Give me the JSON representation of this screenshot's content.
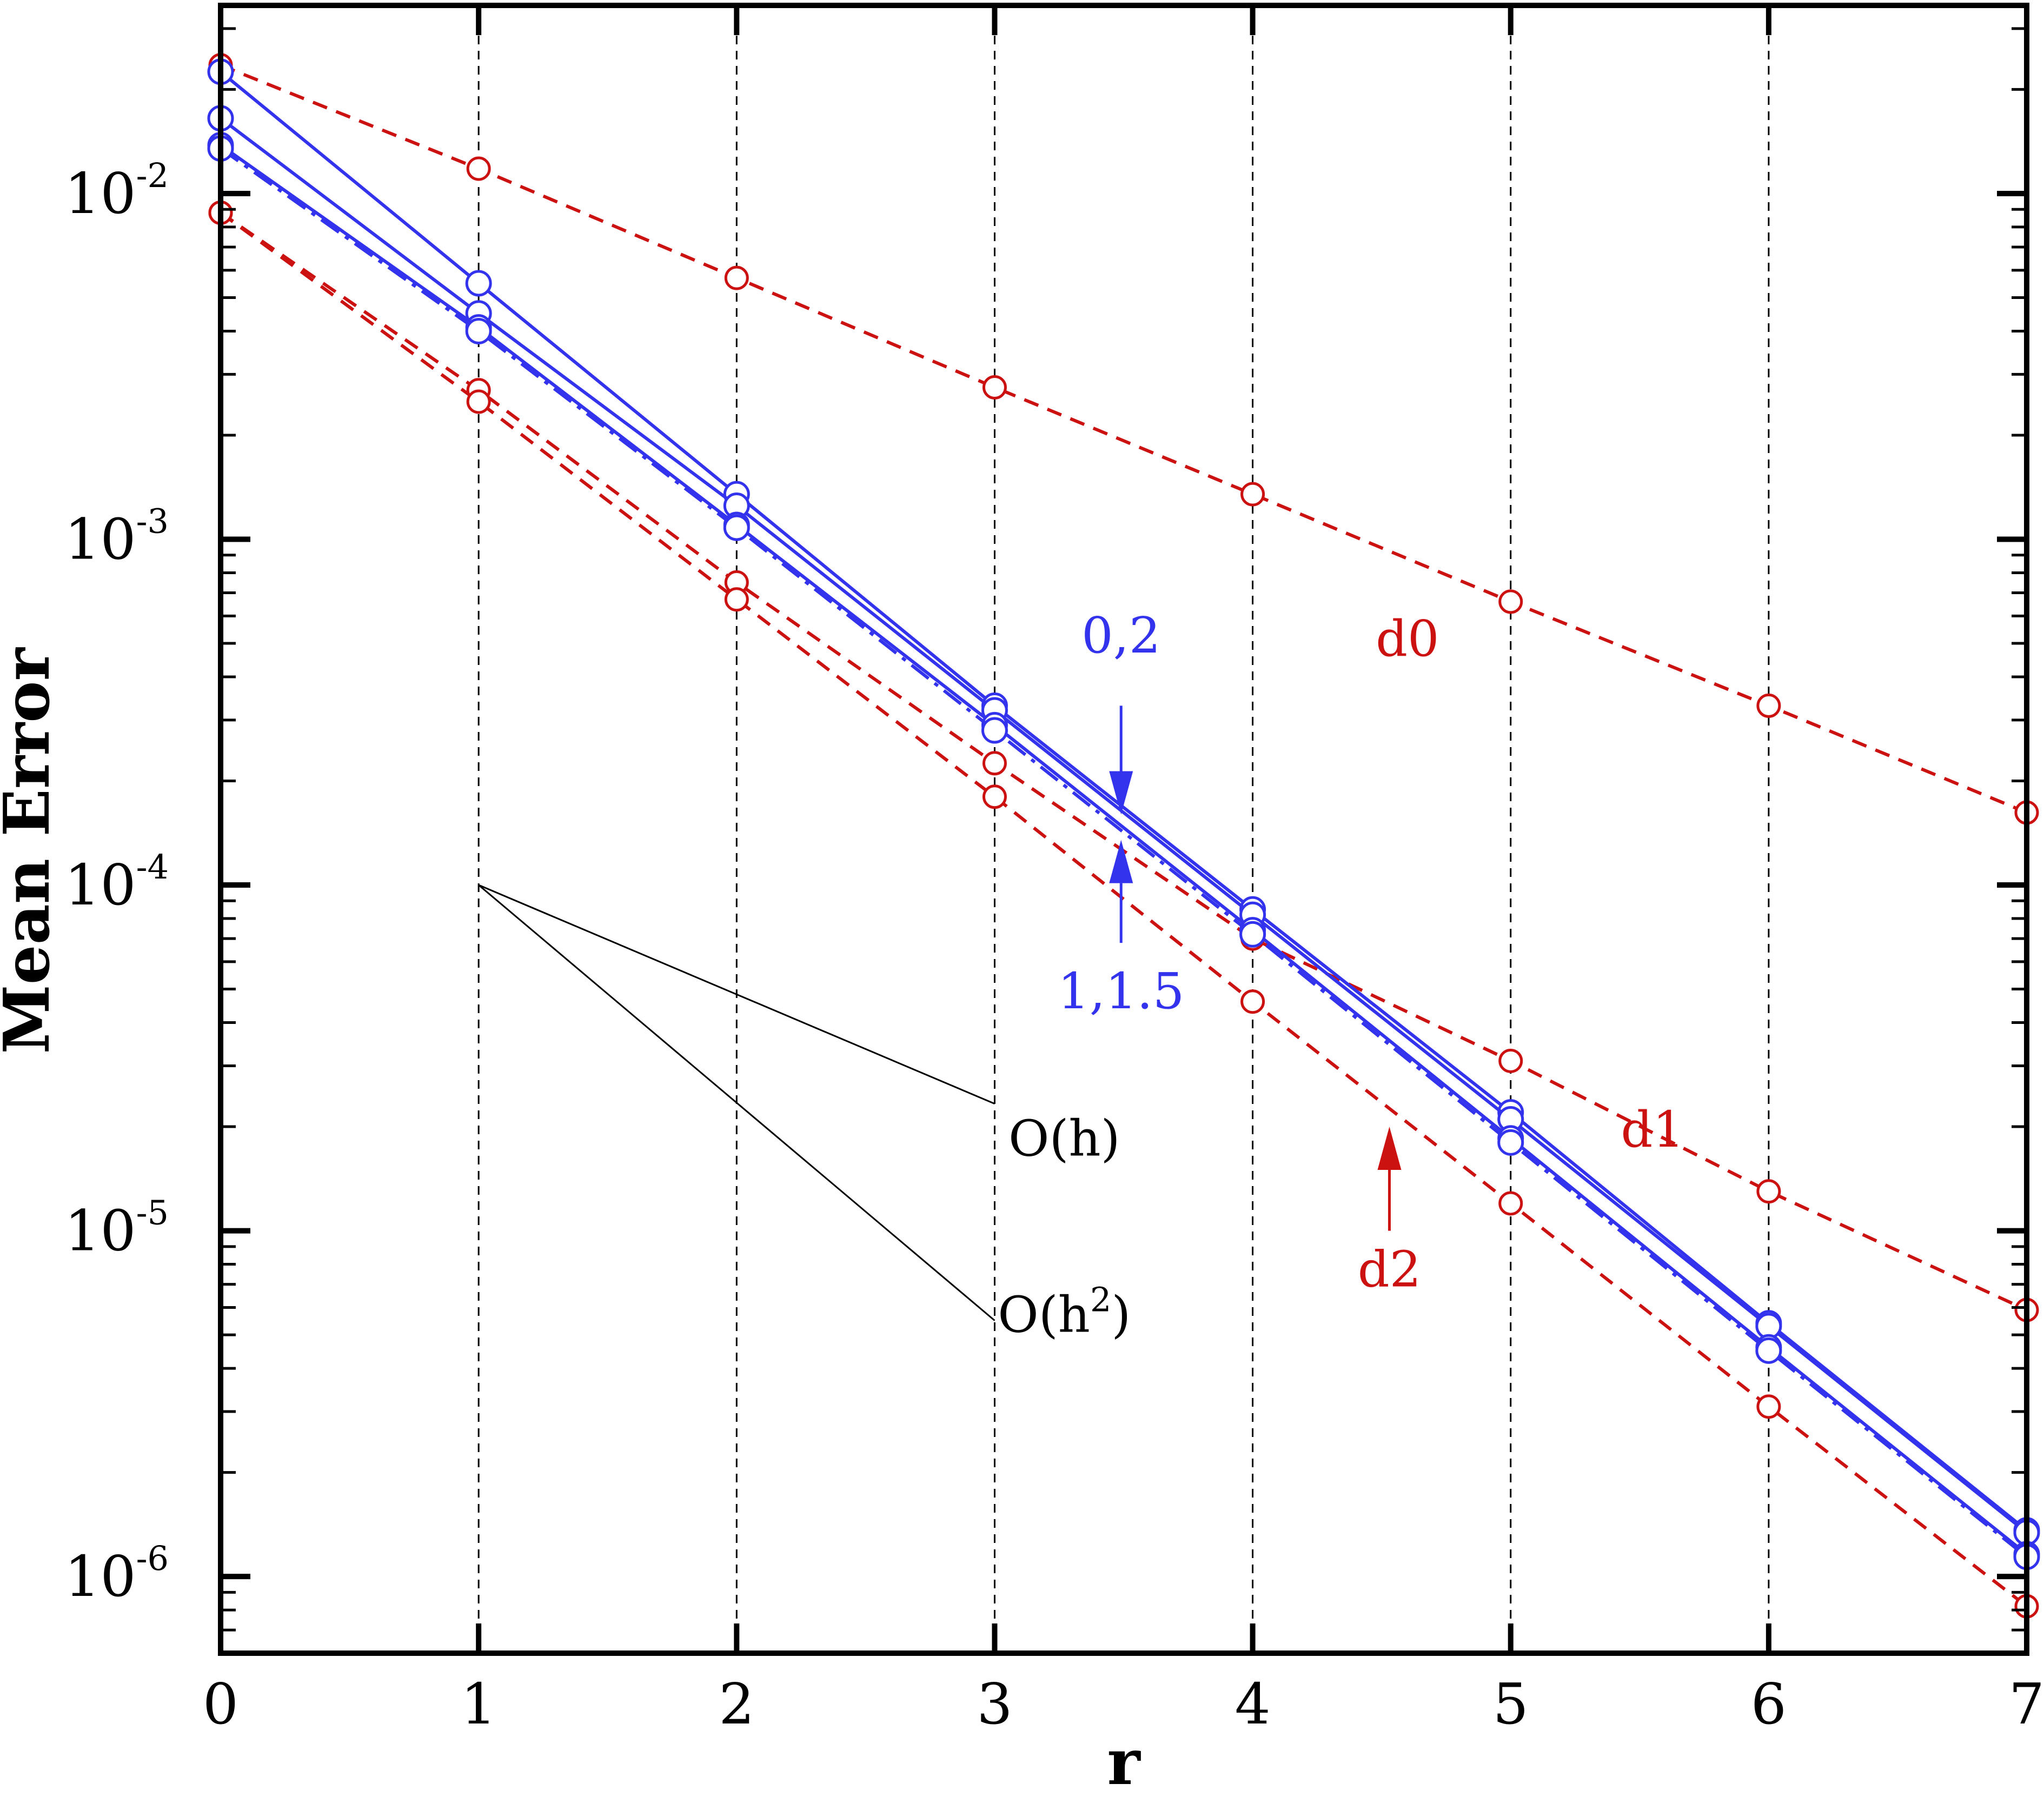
{
  "chart_data": {
    "type": "line",
    "title": "",
    "xlabel": "r",
    "ylabel": "Mean Error",
    "xlim": [
      0,
      7
    ],
    "ylim": [
      6e-07,
      0.035
    ],
    "yscale": "log",
    "grid": "vertical dashed lines at x = 1..6",
    "x": [
      0,
      1,
      2,
      3,
      4,
      5,
      6,
      7
    ],
    "x_ticks": [
      "0",
      "1",
      "2",
      "3",
      "4",
      "5",
      "6",
      "7"
    ],
    "y_ticks": [
      {
        "value": 0.01,
        "mantissa": "10",
        "exponent": "-2"
      },
      {
        "value": 0.001,
        "mantissa": "10",
        "exponent": "-3"
      },
      {
        "value": 0.0001,
        "mantissa": "10",
        "exponent": "-4"
      },
      {
        "value": 1e-05,
        "mantissa": "10",
        "exponent": "-5"
      },
      {
        "value": 1e-06,
        "mantissa": "10",
        "exponent": "-6"
      }
    ],
    "series": [
      {
        "color": "#cc1111",
        "style": "dashed",
        "values": [
          0.0235,
          0.0118,
          0.0057,
          0.00275,
          0.00135,
          0.00066,
          0.00033,
          0.000162
        ]
      },
      {
        "color": "#cc1111",
        "style": "dashed",
        "values": [
          0.0088,
          0.0027,
          0.00075,
          0.000225,
          7e-05,
          3.1e-05,
          1.3e-05,
          5.9e-06
        ]
      },
      {
        "color": "#cc1111",
        "style": "dashed",
        "values": [
          0.0088,
          0.0025,
          0.00067,
          0.00018,
          4.6e-05,
          1.2e-05,
          3.1e-06,
          8.2e-07
        ]
      },
      {
        "color": "#3333ee",
        "style": "solid",
        "values": [
          0.0225,
          0.0055,
          0.00135,
          0.00033,
          8.5e-05,
          2.2e-05,
          5.4e-06,
          1.36e-06
        ]
      },
      {
        "color": "#3333ee",
        "style": "solid",
        "values": [
          0.0165,
          0.0045,
          0.00125,
          0.00032,
          8.2e-05,
          2.1e-05,
          5.3e-06,
          1.34e-06
        ]
      },
      {
        "color": "#3333ee",
        "style": "solid",
        "values": [
          0.0138,
          0.0041,
          0.0011,
          0.00029,
          7.4e-05,
          1.85e-05,
          4.6e-06,
          1.16e-06
        ]
      },
      {
        "color": "#3333ee",
        "style": "dashdot",
        "values": [
          0.0135,
          0.004,
          0.00108,
          0.00028,
          7.2e-05,
          1.8e-05,
          4.5e-06,
          1.14e-06
        ]
      }
    ],
    "reference_lines": [
      {
        "x": [
          1,
          3.0
        ],
        "y": [
          0.0001,
          2.33e-05
        ]
      },
      {
        "x": [
          1,
          3.0
        ],
        "y": [
          0.0001,
          5.5e-06
        ]
      }
    ],
    "annotations": [
      {
        "text": "d0",
        "color": "#cc1111",
        "x": 4.6,
        "y": 0.00046
      },
      {
        "text": "d1",
        "color": "#cc1111",
        "x": 5.55,
        "y": 1.75e-05
      },
      {
        "text": "d2",
        "color": "#cc1111",
        "x": 4.53,
        "y": 6.9e-06
      },
      {
        "text": "0,2",
        "color": "#3333ee",
        "x": 3.49,
        "y": 0.00047
      },
      {
        "text": "1,1.5",
        "color": "#3333ee",
        "x": 3.49,
        "y": 4.4e-05
      },
      {
        "text": "O(h)",
        "color": "#000000",
        "x": 3.27,
        "y": 1.65e-05
      },
      {
        "text": "O(h",
        "sup": "2",
        "suffix": ")",
        "color": "#000000",
        "x": 3.27,
        "y": 5.1e-06
      }
    ],
    "arrows": [
      {
        "color": "#3333ee",
        "x": 3.49,
        "y_from": 0.00033,
        "y_to": 0.00016
      },
      {
        "color": "#3333ee",
        "x": 3.49,
        "y_from": 6.8e-05,
        "y_to": 0.000135
      },
      {
        "color": "#cc1111",
        "x": 4.53,
        "y_from": 1e-05,
        "y_to": 2e-05
      }
    ]
  }
}
